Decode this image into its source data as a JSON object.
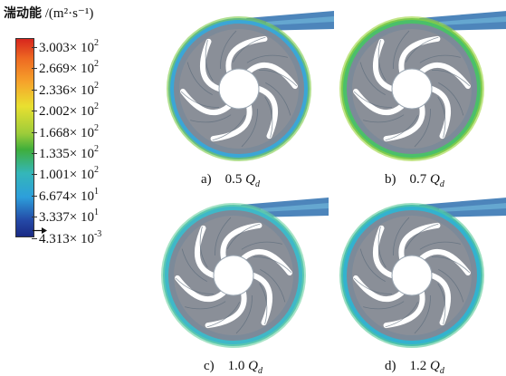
{
  "legend": {
    "title_cn": "湍动能",
    "title_unit": "/(m²·s⁻¹)",
    "ticks": [
      {
        "mantissa": "3.003",
        "exp": "2"
      },
      {
        "mantissa": "2.669",
        "exp": "2"
      },
      {
        "mantissa": "2.336",
        "exp": "2"
      },
      {
        "mantissa": "2.002",
        "exp": "2"
      },
      {
        "mantissa": "1.668",
        "exp": "2"
      },
      {
        "mantissa": "1.335",
        "exp": "2"
      },
      {
        "mantissa": "1.001",
        "exp": "2"
      },
      {
        "mantissa": "6.674",
        "exp": "1"
      },
      {
        "mantissa": "3.337",
        "exp": "1"
      },
      {
        "mantissa": "4.313",
        "exp": "-3"
      }
    ],
    "times_label": "× 10"
  },
  "panels": [
    {
      "letter": "a)",
      "value": "0.5",
      "q": "Q",
      "sub": "d",
      "ring": "#3ba6d6",
      "accent": "#7fcc4a"
    },
    {
      "letter": "b)",
      "value": "0.7",
      "q": "Q",
      "sub": "d",
      "ring": "#4bbf6a",
      "accent": "#9bd43a"
    },
    {
      "letter": "c)",
      "value": "1.0",
      "q": "Q",
      "sub": "d",
      "ring": "#3fb8c8",
      "accent": "#6cd0a0"
    },
    {
      "letter": "d)",
      "value": "1.2",
      "q": "Q",
      "sub": "d",
      "ring": "#33b2cf",
      "accent": "#58c896"
    }
  ]
}
